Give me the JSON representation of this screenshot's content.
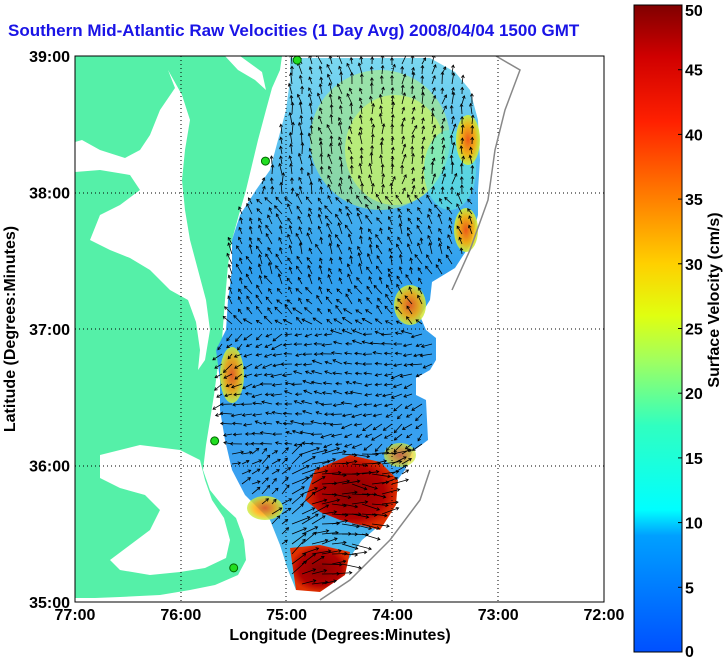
{
  "title": "Southern Mid-Atlantic Raw Velocities (1 Day Avg) 2008/04/04 1500 GMT",
  "x_axis": {
    "label": "Longitude (Degrees:Minutes)",
    "ticks": [
      "77:00",
      "76:00",
      "75:00",
      "74:00",
      "73:00",
      "72:00"
    ]
  },
  "y_axis": {
    "label": "Latitude (Degrees:Minutes)",
    "ticks": [
      "39:00",
      "38:00",
      "37:00",
      "36:00",
      "35:00"
    ]
  },
  "colorbar": {
    "label": "Surface Velocity (cm/s)",
    "ticks": [
      "50",
      "45",
      "40",
      "35",
      "30",
      "25",
      "20",
      "15",
      "10",
      "5",
      "0"
    ],
    "min": 0,
    "max": 50
  },
  "colors": {
    "title": "#1a14e6",
    "land": "#55f0a8",
    "station": "#22dd22"
  },
  "map_extent": {
    "lon_range": [
      -77,
      -72
    ],
    "lat_range": [
      35,
      39
    ]
  },
  "stations": [
    {
      "lon": -74.9,
      "lat": 38.97
    },
    {
      "lon": -75.2,
      "lat": 38.23
    },
    {
      "lon": -75.68,
      "lat": 36.18
    },
    {
      "lon": -75.5,
      "lat": 35.25
    }
  ]
}
